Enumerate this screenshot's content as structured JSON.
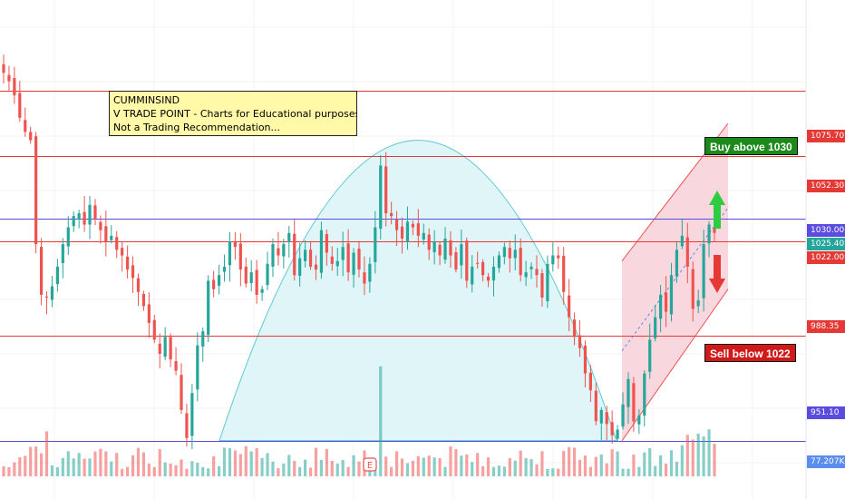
{
  "note": {
    "lines": [
      "CUMMINSIND",
      "V TRADE POINT - Charts for Educational purposes only.",
      "Not a Trading Recommendation..."
    ]
  },
  "signals": {
    "buy": "Buy above 1030",
    "sell": "Sell below 1022"
  },
  "price_labels": {
    "l1075": "1075.70",
    "l1052": "1052.30",
    "l1030": "1030.00",
    "l1025": "1025.40",
    "l1022": "1022.00",
    "l988": "988.35",
    "l951": "951.10",
    "vol": "77.207K"
  },
  "earnings_marker": "E",
  "colors": {
    "up": "#26a69a",
    "down": "#ef5350",
    "support": "#e53935",
    "level_blue": "#5b4ce0",
    "arc_fill": "#dff5f7",
    "arc_stroke": "#5fc8d0",
    "channel_fill": "#f8cdd6",
    "channel_stroke": "#ef5350",
    "buy_bg": "#1b8a1b",
    "sell_bg": "#d01919",
    "current_price_bg": "#26a69a"
  },
  "chart_data": {
    "type": "candlestick",
    "symbol": "CUMMINSIND",
    "y_range": [
      940,
      1095
    ],
    "horizontal_levels": [
      1075.7,
      1052.3,
      1030.0,
      1022.0,
      988.35,
      951.1
    ],
    "current_price": 1025.4,
    "volume_last": "77.207K",
    "price_path": [
      1082,
      1079,
      1074,
      1066,
      1061,
      1058,
      1021,
      1003,
      1002,
      1006,
      1013,
      1021,
      1027,
      1031,
      1032,
      1028,
      1035,
      1030,
      1026,
      1022,
      1024,
      1019,
      1017,
      1012,
      1009,
      1004,
      999,
      993,
      987,
      982,
      988,
      980,
      976,
      962,
      952,
      968,
      985,
      990,
      1008,
      1005,
      1010,
      1013,
      1022,
      1020,
      1012,
      1007,
      1011,
      1003,
      1005,
      1014,
      1021,
      1017,
      1021,
      1025,
      1010,
      1016,
      1019,
      1013,
      1012,
      1026,
      1018,
      1014,
      1015,
      1020,
      1011,
      1018,
      1012,
      1007,
      1014,
      1027,
      1049,
      1032,
      1031,
      1026,
      1023,
      1029,
      1027,
      1024,
      1025,
      1019,
      1022,
      1017,
      1023,
      1017,
      1012,
      1021,
      1008,
      1013,
      1014,
      1010,
      1008,
      1013,
      1017,
      1020,
      1016,
      1019,
      1010,
      1011,
      1013,
      1010,
      1002,
      1014,
      1017,
      1016,
      1004,
      995,
      988,
      984,
      975,
      969,
      958,
      962,
      957,
      953,
      955,
      964,
      973,
      958,
      960,
      975,
      987,
      995,
      1003,
      997,
      1010,
      1019,
      1024,
      1013,
      998,
      1001,
      1021,
      1028,
      1025
    ]
  }
}
